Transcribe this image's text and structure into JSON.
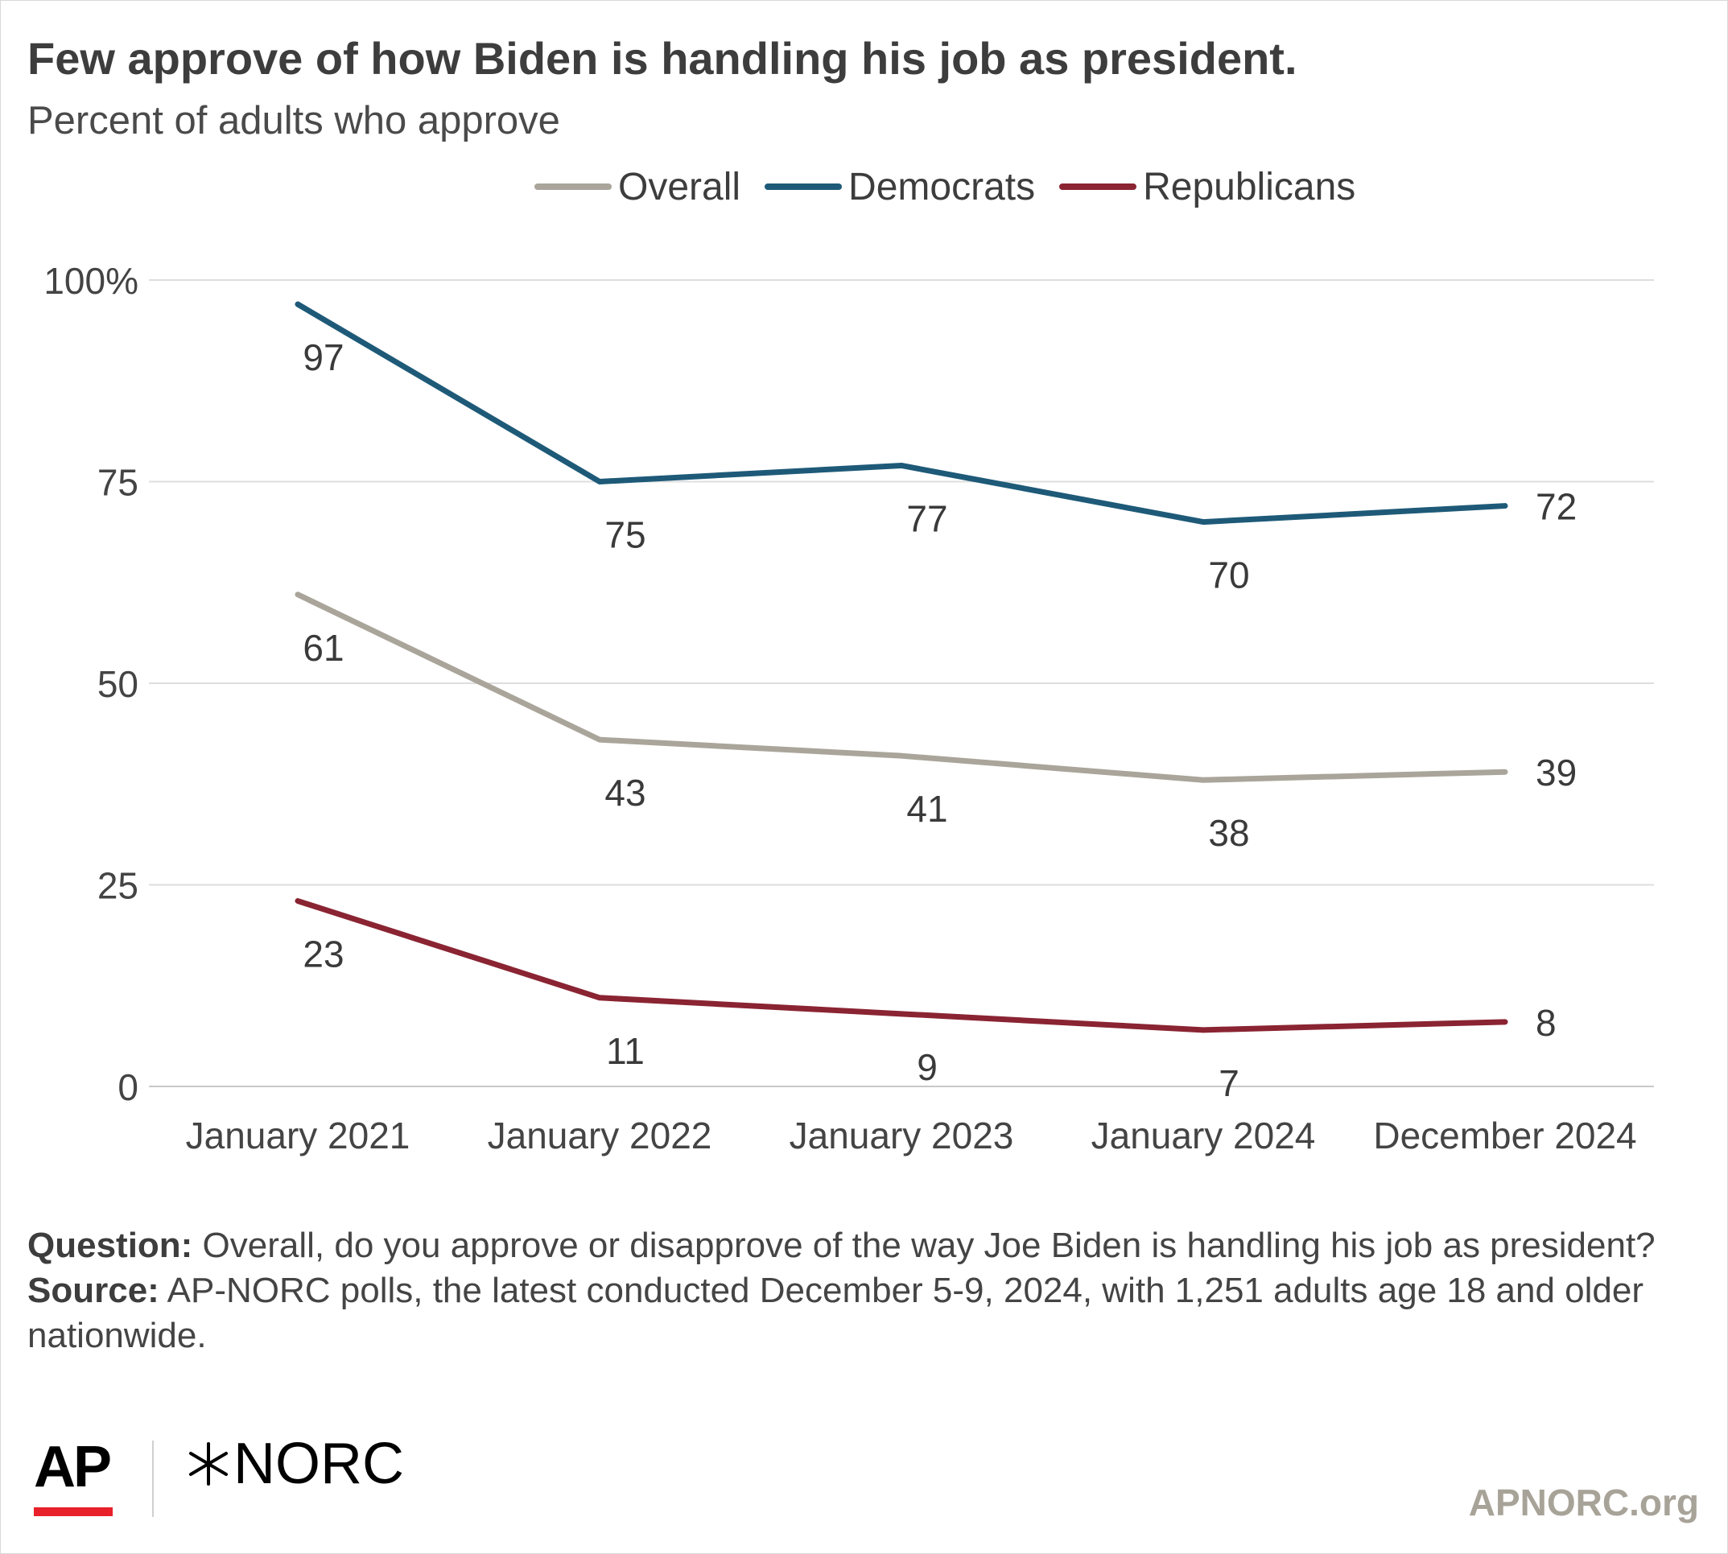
{
  "header": {
    "title": "Few approve of how Biden is handling his job as president.",
    "subtitle": "Percent of adults who approve"
  },
  "chart_data": {
    "type": "line",
    "categories": [
      "January 2021",
      "January 2022",
      "January 2023",
      "January 2024",
      "December 2024"
    ],
    "ylim": [
      0,
      100
    ],
    "yticks": [
      0,
      25,
      50,
      75,
      100
    ],
    "ytick_labels": [
      "0",
      "25",
      "50",
      "75",
      "100%"
    ],
    "grid": true,
    "legend_position": "top",
    "series": [
      {
        "name": "Overall",
        "color": "#aaa59a",
        "values": [
          61,
          43,
          41,
          38,
          39
        ]
      },
      {
        "name": "Democrats",
        "color": "#1e5a78",
        "values": [
          97,
          75,
          77,
          70,
          72
        ]
      },
      {
        "name": "Republicans",
        "color": "#8a2432",
        "values": [
          23,
          11,
          9,
          7,
          8
        ]
      }
    ]
  },
  "notes": {
    "question_label": "Question:",
    "question_text": " Overall, do you approve or disapprove of the way Joe Biden is handling his job as president?",
    "source_label": "Source:",
    "source_text": " AP-NORC polls, the latest conducted December 5-9, 2024, with 1,251 adults age 18 and older nationwide."
  },
  "branding": {
    "ap_logo": "AP",
    "norc_logo": "NORC",
    "website": "APNORC.org"
  }
}
